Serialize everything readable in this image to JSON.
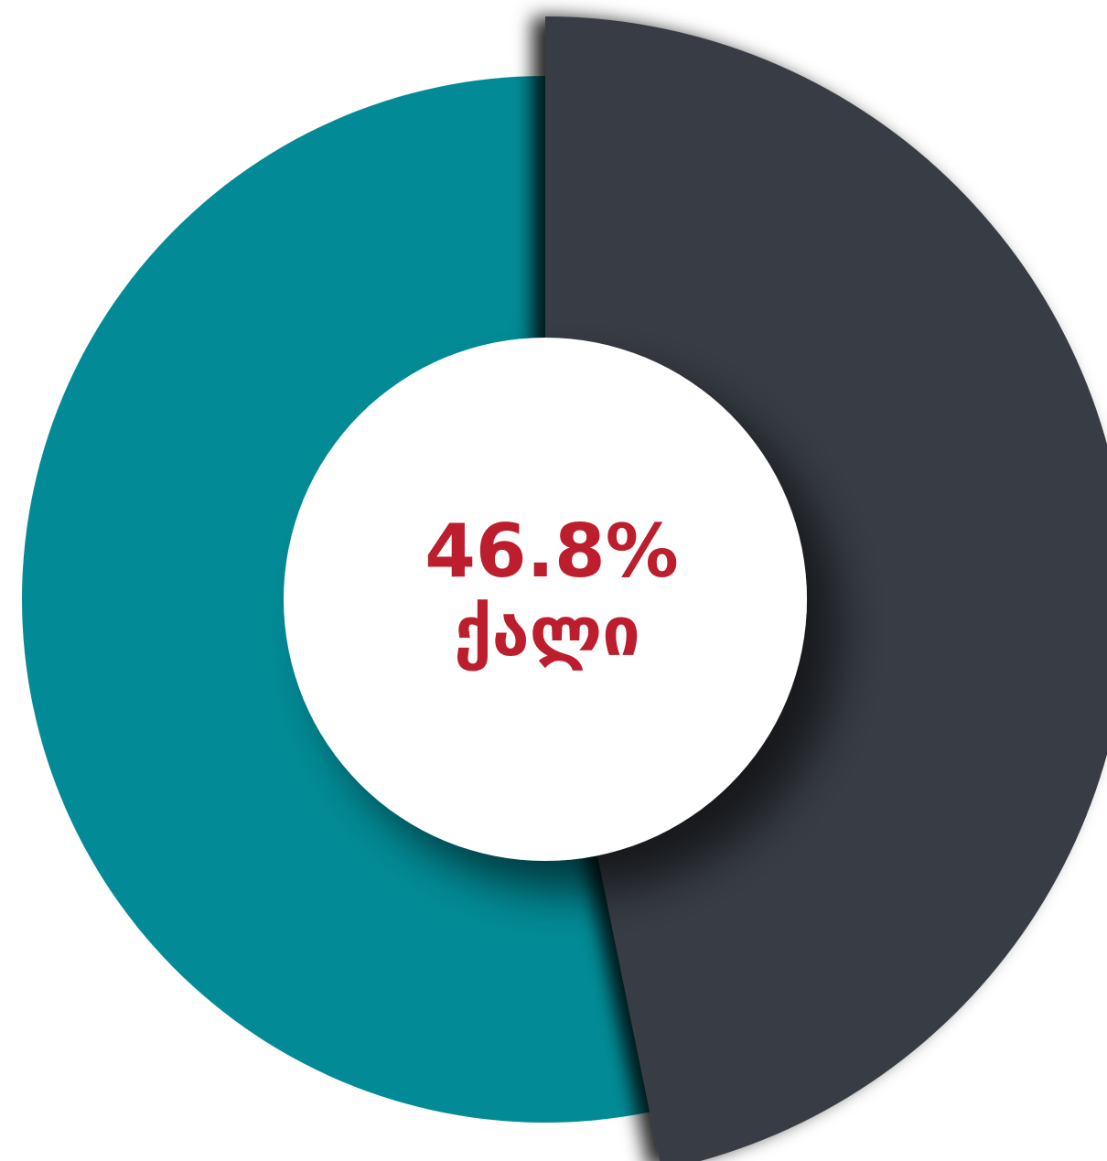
{
  "chart_data": {
    "type": "pie",
    "style": "donut",
    "categories": [
      "",
      ""
    ],
    "values": [
      46.8,
      53.2
    ],
    "colors": [
      "#383e45",
      "#028b96"
    ],
    "center_label": {
      "value_text": "46.8%",
      "label_text": "ქალი",
      "color": "#bc1e2d"
    },
    "title": "",
    "legend": "none"
  }
}
